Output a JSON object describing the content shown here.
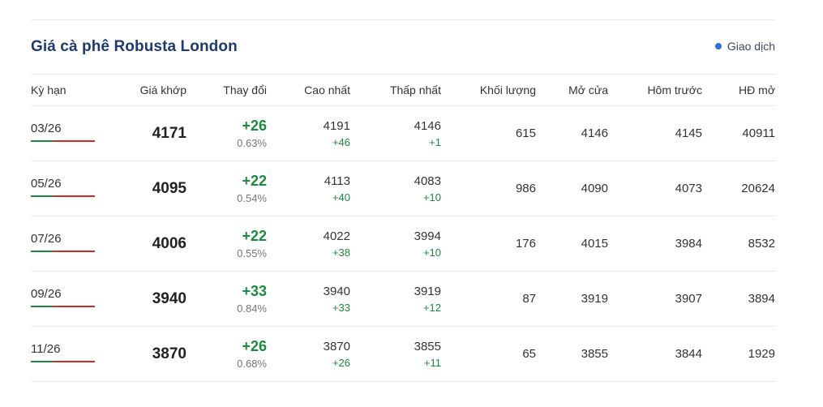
{
  "panel": {
    "title": "Giá cà phê Robusta London",
    "status": "Giao dịch",
    "colors": {
      "title": "#1f3a6e",
      "positive": "#1b8a3e",
      "negative": "#d32a2a",
      "status_dot": "#2f6fd6"
    }
  },
  "columns": [
    "Kỳ hạn",
    "Giá khớp",
    "Thay đổi",
    "Cao nhất",
    "Thấp nhất",
    "Khối lượng",
    "Mở cửa",
    "Hôm trước",
    "HĐ mở"
  ],
  "rows": [
    {
      "term": "03/26",
      "price": "4171",
      "change": "+26",
      "pct": "0.63%",
      "high": "4191",
      "high_delta": "+46",
      "low": "4146",
      "low_delta": "+1",
      "volume": "615",
      "open": "4146",
      "prev": "4145",
      "oi": "40911"
    },
    {
      "term": "05/26",
      "price": "4095",
      "change": "+22",
      "pct": "0.54%",
      "high": "4113",
      "high_delta": "+40",
      "low": "4083",
      "low_delta": "+10",
      "volume": "986",
      "open": "4090",
      "prev": "4073",
      "oi": "20624"
    },
    {
      "term": "07/26",
      "price": "4006",
      "change": "+22",
      "pct": "0.55%",
      "high": "4022",
      "high_delta": "+38",
      "low": "3994",
      "low_delta": "+10",
      "volume": "176",
      "open": "4015",
      "prev": "3984",
      "oi": "8532"
    },
    {
      "term": "09/26",
      "price": "3940",
      "change": "+33",
      "pct": "0.84%",
      "high": "3940",
      "high_delta": "+33",
      "low": "3919",
      "low_delta": "+12",
      "volume": "87",
      "open": "3919",
      "prev": "3907",
      "oi": "3894"
    },
    {
      "term": "11/26",
      "price": "3870",
      "change": "+26",
      "pct": "0.68%",
      "high": "3870",
      "high_delta": "+26",
      "low": "3855",
      "low_delta": "+11",
      "volume": "65",
      "open": "3855",
      "prev": "3844",
      "oi": "1929"
    }
  ]
}
